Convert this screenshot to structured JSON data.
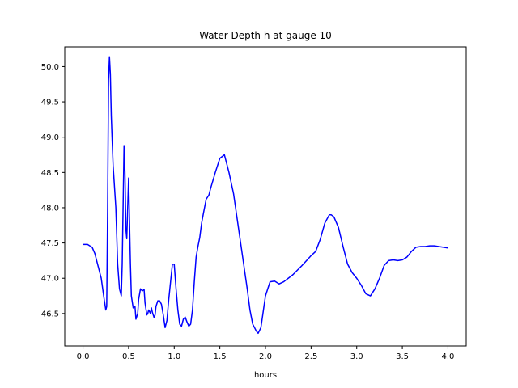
{
  "chart_data": {
    "type": "line",
    "title": "Water Depth h at gauge 10",
    "xlabel": "hours",
    "ylabel": "",
    "xlim": [
      -0.2,
      4.2
    ],
    "ylim": [
      46.04,
      50.28
    ],
    "xticks": [
      0.0,
      0.5,
      1.0,
      1.5,
      2.0,
      2.5,
      3.0,
      3.5,
      4.0
    ],
    "xtick_labels": [
      "0.0",
      "0.5",
      "1.0",
      "1.5",
      "2.0",
      "2.5",
      "3.0",
      "3.5",
      "4.0"
    ],
    "yticks": [
      46.5,
      47.0,
      47.5,
      48.0,
      48.5,
      49.0,
      49.5,
      50.0
    ],
    "ytick_labels": [
      "46.5",
      "47.0",
      "47.5",
      "48.0",
      "48.5",
      "49.0",
      "49.5",
      "50.0"
    ],
    "grid": false,
    "legend": "none",
    "series": [
      {
        "color": "#0000ff",
        "x": [
          0.0,
          0.05,
          0.1,
          0.13,
          0.16,
          0.2,
          0.23,
          0.25,
          0.26,
          0.27,
          0.28,
          0.29,
          0.3,
          0.31,
          0.33,
          0.36,
          0.38,
          0.4,
          0.42,
          0.43,
          0.45,
          0.46,
          0.47,
          0.48,
          0.49,
          0.5,
          0.51,
          0.52,
          0.53,
          0.55,
          0.57,
          0.58,
          0.6,
          0.61,
          0.63,
          0.65,
          0.67,
          0.68,
          0.7,
          0.71,
          0.72,
          0.74,
          0.75,
          0.76,
          0.78,
          0.79,
          0.8,
          0.82,
          0.84,
          0.86,
          0.88,
          0.9,
          0.92,
          0.94,
          0.96,
          0.98,
          1.0,
          1.02,
          1.04,
          1.06,
          1.08,
          1.1,
          1.12,
          1.14,
          1.16,
          1.18,
          1.2,
          1.22,
          1.24,
          1.26,
          1.28,
          1.3,
          1.32,
          1.35,
          1.38,
          1.4,
          1.45,
          1.5,
          1.55,
          1.6,
          1.65,
          1.7,
          1.75,
          1.8,
          1.83,
          1.86,
          1.9,
          1.92,
          1.95,
          2.0,
          2.05,
          2.1,
          2.15,
          2.2,
          2.3,
          2.4,
          2.5,
          2.55,
          2.6,
          2.65,
          2.7,
          2.72,
          2.75,
          2.8,
          2.85,
          2.9,
          2.95,
          3.0,
          3.05,
          3.1,
          3.15,
          3.2,
          3.25,
          3.3,
          3.35,
          3.4,
          3.45,
          3.5,
          3.55,
          3.6,
          3.65,
          3.7,
          3.75,
          3.8,
          3.85,
          3.9,
          3.95,
          4.0
        ],
        "y": [
          47.48,
          47.48,
          47.44,
          47.35,
          47.2,
          47.0,
          46.72,
          46.55,
          46.6,
          48.0,
          49.8,
          50.14,
          49.9,
          49.3,
          48.6,
          48.0,
          47.2,
          46.85,
          46.75,
          47.2,
          48.88,
          48.5,
          47.7,
          47.56,
          48.0,
          48.42,
          47.8,
          47.2,
          46.75,
          46.58,
          46.6,
          46.42,
          46.5,
          46.7,
          46.85,
          46.82,
          46.84,
          46.65,
          46.48,
          46.5,
          46.55,
          46.5,
          46.58,
          46.52,
          46.44,
          46.48,
          46.6,
          46.68,
          46.68,
          46.63,
          46.48,
          46.3,
          46.4,
          46.7,
          46.95,
          47.2,
          47.2,
          46.85,
          46.55,
          46.35,
          46.32,
          46.42,
          46.45,
          46.38,
          46.32,
          46.35,
          46.55,
          46.95,
          47.3,
          47.45,
          47.58,
          47.78,
          47.92,
          48.12,
          48.18,
          48.28,
          48.5,
          48.7,
          48.75,
          48.5,
          48.2,
          47.75,
          47.3,
          46.85,
          46.55,
          46.35,
          46.25,
          46.22,
          46.3,
          46.75,
          46.95,
          46.96,
          46.92,
          46.95,
          47.05,
          47.18,
          47.32,
          47.38,
          47.55,
          47.78,
          47.9,
          47.9,
          47.87,
          47.72,
          47.45,
          47.2,
          47.08,
          47.0,
          46.9,
          46.78,
          46.75,
          46.85,
          47.0,
          47.18,
          47.25,
          47.26,
          47.25,
          47.26,
          47.3,
          47.38,
          47.44,
          47.45,
          47.45,
          47.46,
          47.46,
          47.45,
          47.44,
          47.43
        ]
      }
    ]
  }
}
